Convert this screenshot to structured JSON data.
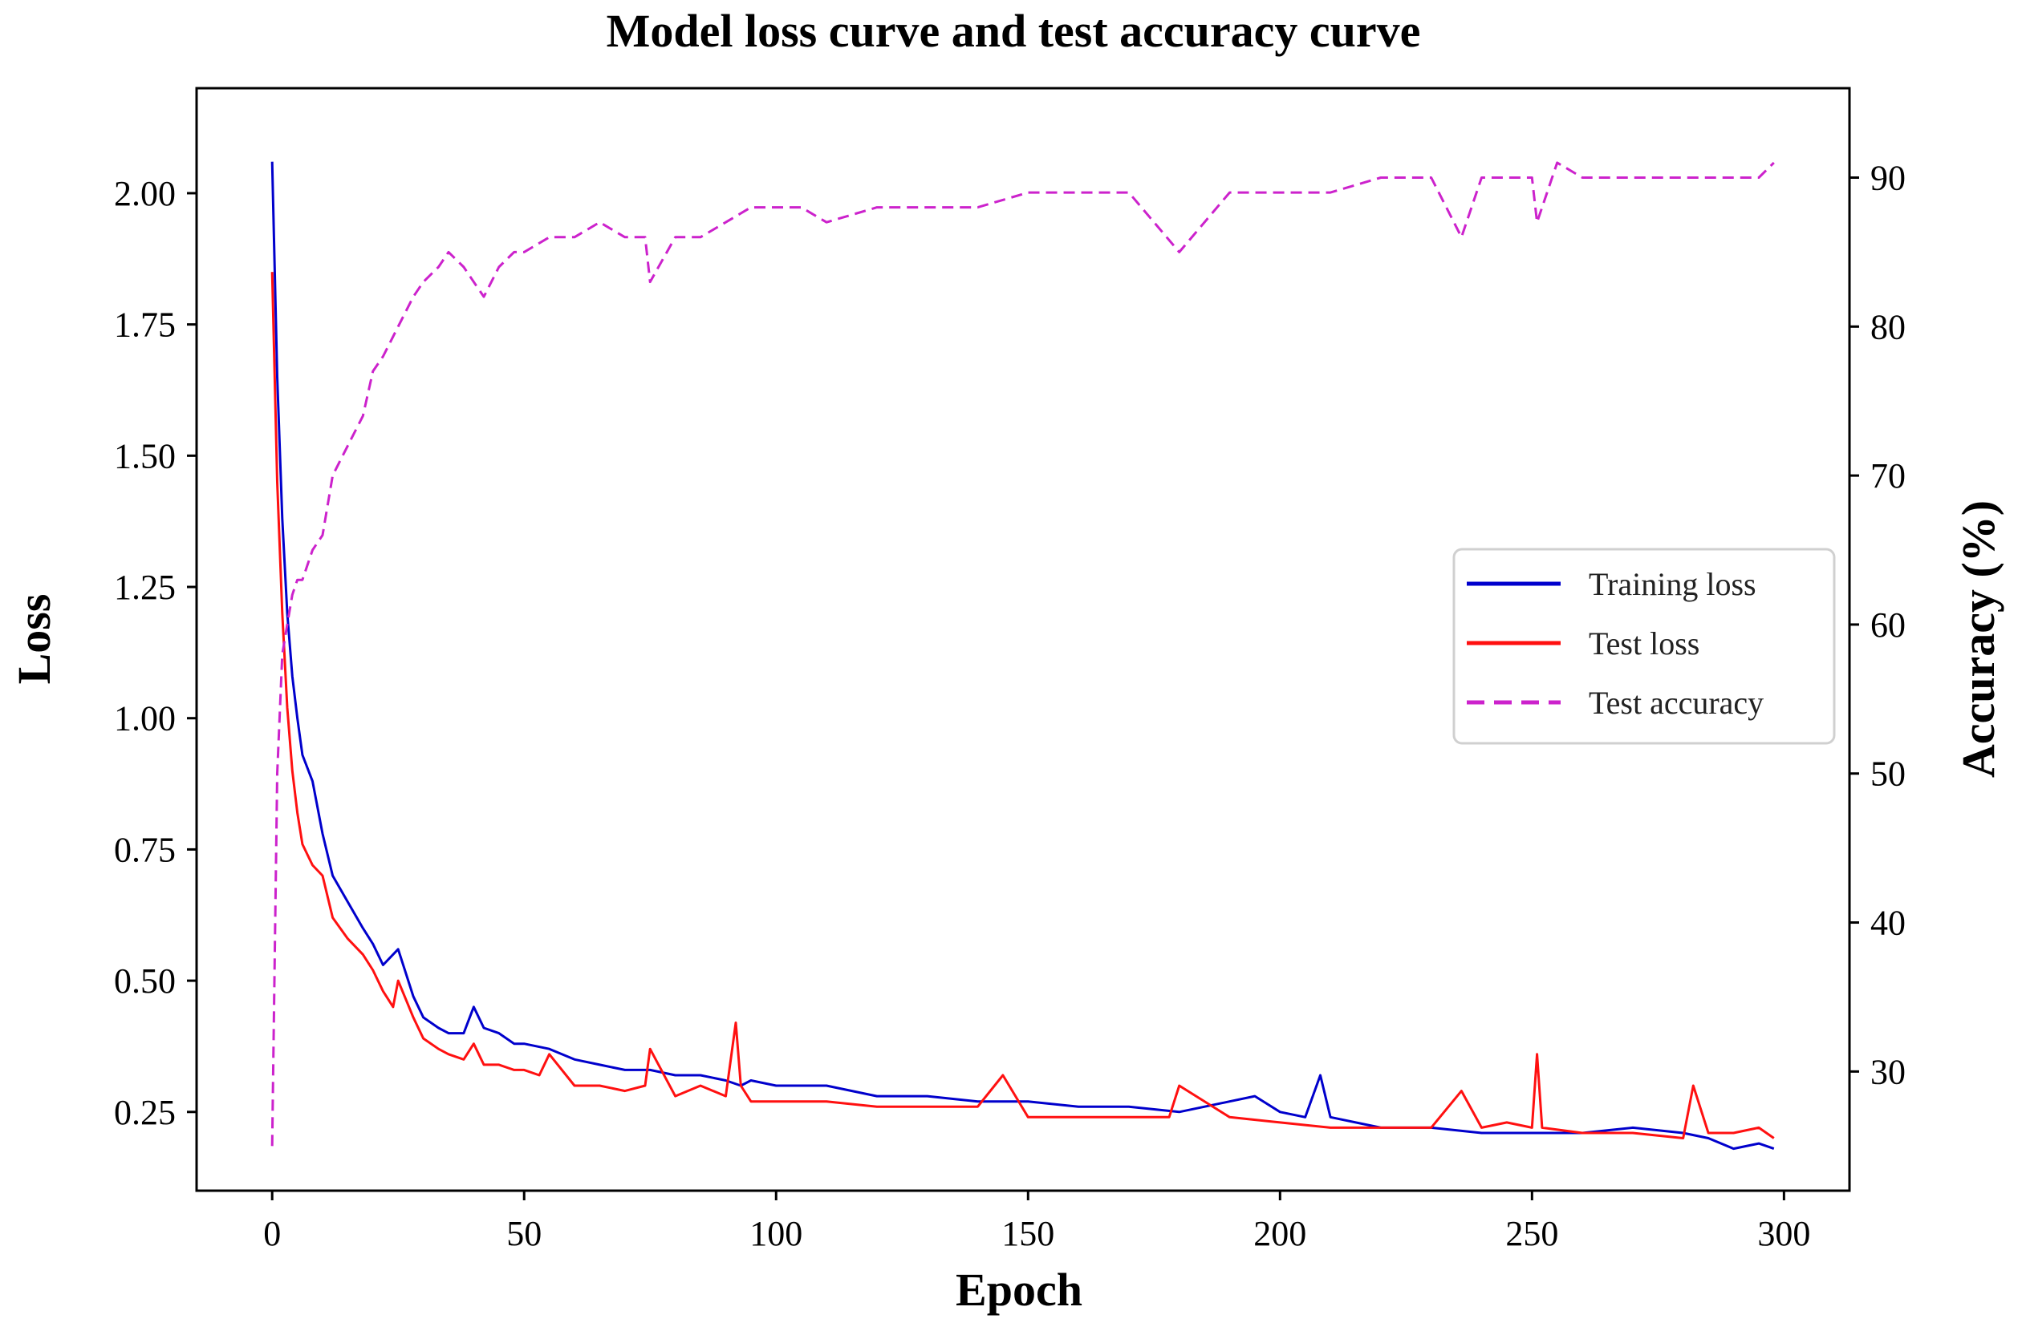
{
  "chart_data": {
    "type": "line",
    "title": "Model loss curve and test accuracy curve",
    "xlabel": "Epoch",
    "ylabel_left": "Loss",
    "ylabel_right": "Accuracy (%)",
    "xlim": [
      -15,
      313
    ],
    "ylim_left": [
      0.1,
      2.2
    ],
    "ylim_right": [
      22,
      96
    ],
    "x_ticks": [
      0,
      50,
      100,
      150,
      200,
      250,
      300
    ],
    "y_ticks_left": [
      0.25,
      0.5,
      0.75,
      1.0,
      1.25,
      1.5,
      1.75,
      2.0
    ],
    "y_ticks_left_labels": [
      "0.25",
      "0.50",
      "0.75",
      "1.00",
      "1.25",
      "1.50",
      "1.75",
      "2.00"
    ],
    "y_ticks_right": [
      30,
      40,
      50,
      60,
      70,
      80,
      90
    ],
    "legend_position": "center-right",
    "series": [
      {
        "name": "Training loss",
        "axis": "left",
        "color": "#0000cc",
        "style": "solid",
        "x": [
          0,
          1,
          2,
          3,
          4,
          5,
          6,
          8,
          10,
          12,
          15,
          18,
          20,
          22,
          25,
          28,
          30,
          33,
          35,
          38,
          40,
          42,
          45,
          48,
          50,
          55,
          60,
          65,
          70,
          75,
          80,
          85,
          90,
          93,
          95,
          100,
          105,
          110,
          120,
          130,
          140,
          150,
          160,
          170,
          180,
          190,
          195,
          200,
          205,
          208,
          210,
          220,
          230,
          240,
          250,
          260,
          270,
          280,
          285,
          290,
          295,
          298
        ],
        "values": [
          2.06,
          1.65,
          1.38,
          1.2,
          1.08,
          1.0,
          0.93,
          0.88,
          0.78,
          0.7,
          0.65,
          0.6,
          0.57,
          0.53,
          0.56,
          0.47,
          0.43,
          0.41,
          0.4,
          0.4,
          0.45,
          0.41,
          0.4,
          0.38,
          0.38,
          0.37,
          0.35,
          0.34,
          0.33,
          0.33,
          0.32,
          0.32,
          0.31,
          0.3,
          0.31,
          0.3,
          0.3,
          0.3,
          0.28,
          0.28,
          0.27,
          0.27,
          0.26,
          0.26,
          0.25,
          0.27,
          0.28,
          0.25,
          0.24,
          0.32,
          0.24,
          0.22,
          0.22,
          0.21,
          0.21,
          0.21,
          0.22,
          0.21,
          0.2,
          0.18,
          0.19,
          0.18
        ]
      },
      {
        "name": "Test loss",
        "axis": "left",
        "color": "#ff1010",
        "style": "solid",
        "x": [
          0,
          1,
          2,
          3,
          4,
          5,
          6,
          8,
          10,
          12,
          15,
          18,
          20,
          22,
          24,
          25,
          28,
          30,
          33,
          35,
          38,
          40,
          42,
          45,
          48,
          50,
          53,
          55,
          60,
          65,
          70,
          74,
          75,
          80,
          85,
          90,
          92,
          93,
          95,
          100,
          110,
          120,
          130,
          140,
          145,
          150,
          160,
          170,
          178,
          180,
          190,
          200,
          210,
          220,
          230,
          236,
          240,
          245,
          250,
          251,
          252,
          260,
          270,
          280,
          282,
          285,
          290,
          295,
          298
        ],
        "values": [
          1.85,
          1.45,
          1.2,
          1.02,
          0.9,
          0.82,
          0.76,
          0.72,
          0.7,
          0.62,
          0.58,
          0.55,
          0.52,
          0.48,
          0.45,
          0.5,
          0.43,
          0.39,
          0.37,
          0.36,
          0.35,
          0.38,
          0.34,
          0.34,
          0.33,
          0.33,
          0.32,
          0.36,
          0.3,
          0.3,
          0.29,
          0.3,
          0.37,
          0.28,
          0.3,
          0.28,
          0.42,
          0.3,
          0.27,
          0.27,
          0.27,
          0.26,
          0.26,
          0.26,
          0.32,
          0.24,
          0.24,
          0.24,
          0.24,
          0.3,
          0.24,
          0.23,
          0.22,
          0.22,
          0.22,
          0.29,
          0.22,
          0.23,
          0.22,
          0.36,
          0.22,
          0.21,
          0.21,
          0.2,
          0.3,
          0.21,
          0.21,
          0.22,
          0.2
        ]
      },
      {
        "name": "Test accuracy",
        "axis": "right",
        "color": "#cc22cc",
        "style": "dashed",
        "x": [
          0,
          1,
          2,
          3,
          4,
          5,
          6,
          8,
          10,
          12,
          15,
          18,
          20,
          22,
          25,
          28,
          30,
          33,
          35,
          38,
          40,
          42,
          45,
          48,
          50,
          55,
          60,
          65,
          70,
          74,
          75,
          80,
          85,
          90,
          95,
          100,
          105,
          110,
          120,
          130,
          140,
          150,
          160,
          170,
          180,
          190,
          200,
          210,
          220,
          230,
          236,
          240,
          250,
          251,
          255,
          260,
          270,
          280,
          290,
          295,
          298
        ],
        "values": [
          25,
          50,
          58,
          60,
          62,
          63,
          63,
          65,
          66,
          70,
          72,
          74,
          77,
          78,
          80,
          82,
          83,
          84,
          85,
          84,
          83,
          82,
          84,
          85,
          85,
          86,
          86,
          87,
          86,
          86,
          83,
          86,
          86,
          87,
          88,
          88,
          88,
          87,
          88,
          88,
          88,
          89,
          89,
          89,
          85,
          89,
          89,
          89,
          90,
          90,
          86,
          90,
          90,
          87,
          91,
          90,
          90,
          90,
          90,
          90,
          91
        ]
      }
    ]
  }
}
